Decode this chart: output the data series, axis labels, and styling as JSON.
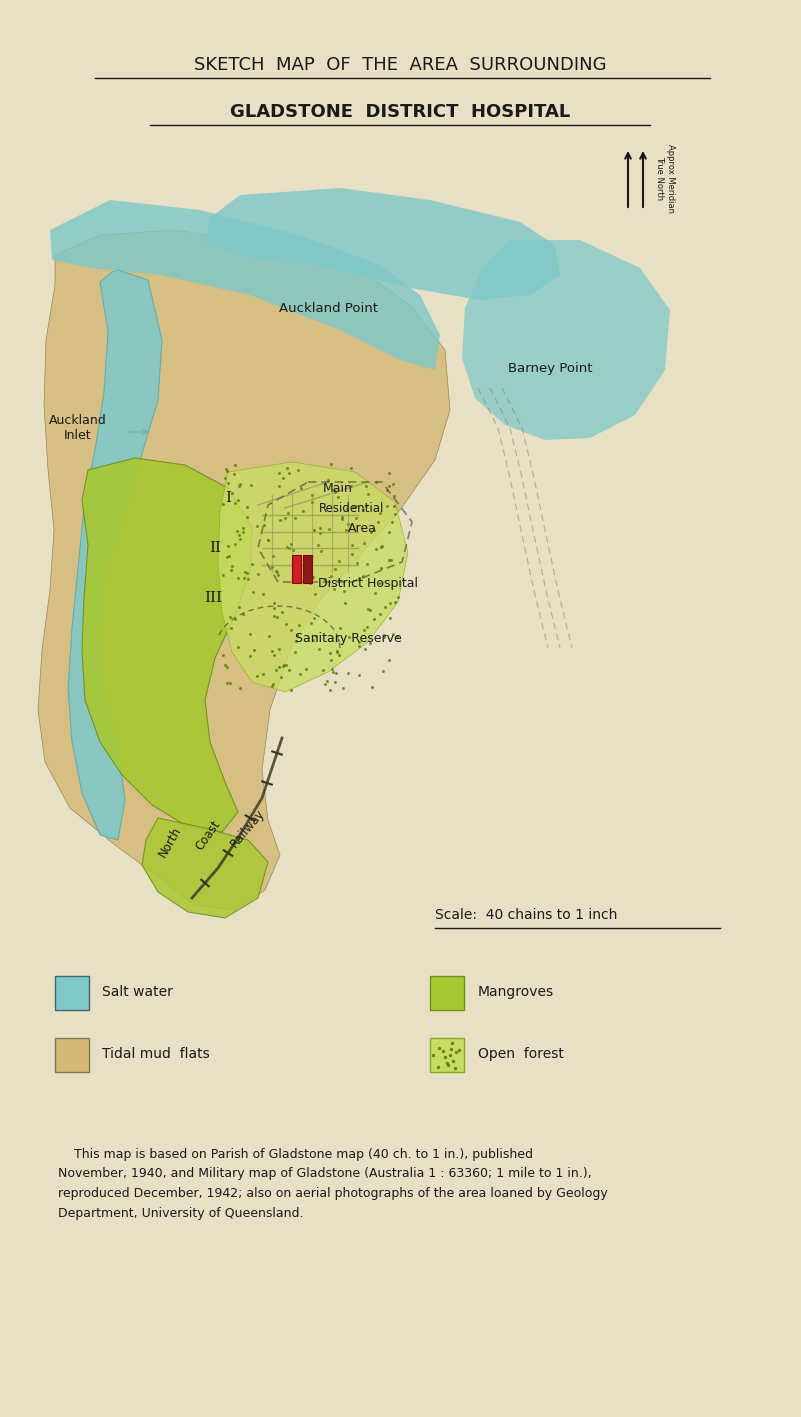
{
  "bg_color": "#e8e0c4",
  "title1": "SKETCH  MAP  OF  THE  AREA  SURROUNDING",
  "title2": "GLADSTONE  DISTRICT  HOSPITAL",
  "salt_water_color": "#7ec8c8",
  "tidal_mud_color": "#d4b878",
  "mangrove_color": "#a8c832",
  "open_forest_color": "#c8dc64",
  "text_color": "#1a1a1a",
  "scale_text": "Scale:  40 chains to 1 inch",
  "footnote": "    This map is based on Parish of Gladstone map (40 ch. to 1 in.), published\nNovember, 1940, and Military map of Gladstone (Australia 1 : 63360; 1 mile to 1 in.),\nreproduced December, 1942; also on aerial photographs of the area loaned by Geology\nDepartment, University of Queensland."
}
